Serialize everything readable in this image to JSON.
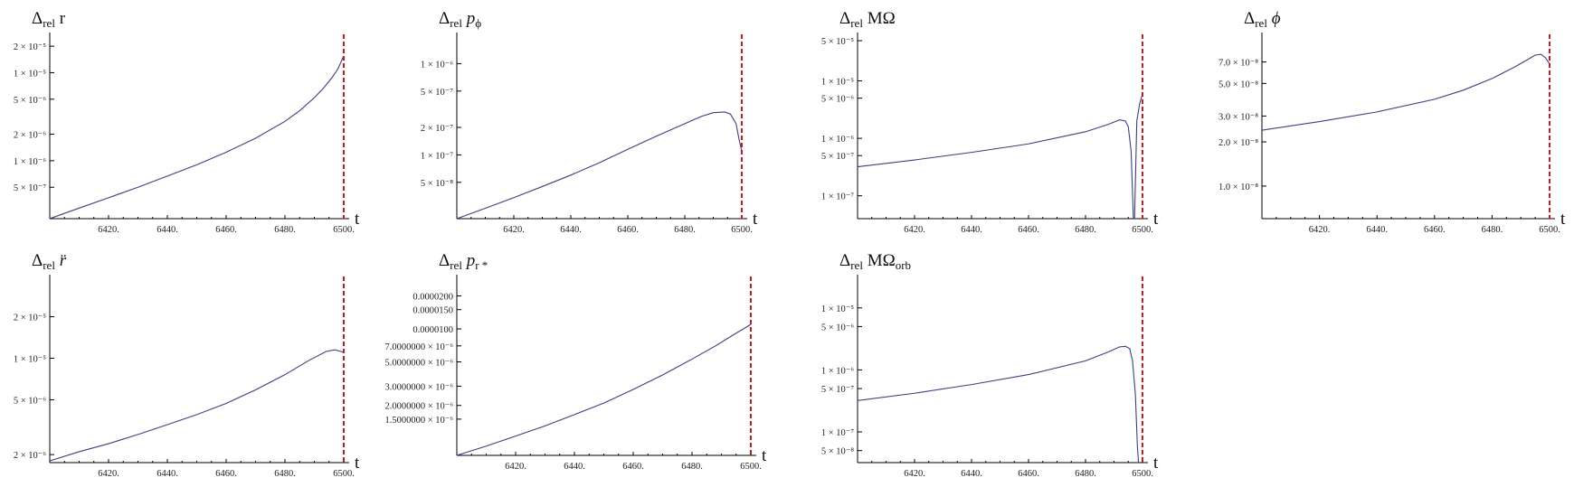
{
  "chart_data": [
    {
      "type": "line",
      "title": "Δrel r",
      "xlabel": "t",
      "log_y": true,
      "xlim": [
        6400,
        6500
      ],
      "ylim": [
        2.2e-07,
        2.6e-05
      ],
      "x_ticks": [
        6420,
        6440,
        6460,
        6480,
        6500
      ],
      "x_tick_labels": [
        "6420.",
        "6440.",
        "6460.",
        "6480.",
        "6500."
      ],
      "y_ticks": [
        5e-07,
        1e-06,
        2e-06,
        5e-06,
        1e-05,
        2e-05
      ],
      "y_tick_labels": [
        "5 × 10⁻⁷",
        "1 × 10⁻⁶",
        "2 × 10⁻⁶",
        "5 × 10⁻⁶",
        "1 × 10⁻⁵",
        "2 × 10⁻⁵"
      ],
      "vline_x": 6500,
      "series": [
        {
          "x": [
            6400,
            6410,
            6420,
            6430,
            6440,
            6450,
            6460,
            6470,
            6480,
            6485,
            6490,
            6493,
            6496,
            6498,
            6500
          ],
          "values": [
            2.2e-07,
            2.9e-07,
            3.8e-07,
            5e-07,
            6.7e-07,
            9e-07,
            1.25e-06,
            1.8e-06,
            2.8e-06,
            3.7e-06,
            5.2e-06,
            6.6e-06,
            8.8e-06,
            1.1e-05,
            1.55e-05
          ]
        }
      ]
    },
    {
      "type": "line",
      "title": "Δrel pϕ",
      "xlabel": "t",
      "log_y": true,
      "xlim": [
        6400,
        6500
      ],
      "ylim": [
        2e-08,
        2e-06
      ],
      "x_ticks": [
        6420,
        6440,
        6460,
        6480,
        6500
      ],
      "x_tick_labels": [
        "6420.",
        "6440.",
        "6460.",
        "6480.",
        "6500."
      ],
      "y_ticks": [
        5e-08,
        1e-07,
        2e-07,
        5e-07,
        1e-06
      ],
      "y_tick_labels": [
        "5 × 10⁻⁸",
        "1 × 10⁻⁷",
        "2 × 10⁻⁷",
        "5 × 10⁻⁷",
        "1 × 10⁻⁶"
      ],
      "vline_x": 6500,
      "series": [
        {
          "x": [
            6400,
            6410,
            6420,
            6430,
            6440,
            6450,
            6460,
            6470,
            6480,
            6486,
            6490,
            6494,
            6496,
            6498,
            6499,
            6500
          ],
          "values": [
            2e-08,
            2.6e-08,
            3.4e-08,
            4.5e-08,
            6e-08,
            8.2e-08,
            1.15e-07,
            1.6e-07,
            2.2e-07,
            2.65e-07,
            2.9e-07,
            2.95e-07,
            2.8e-07,
            2.2e-07,
            1.5e-07,
            1.1e-07
          ]
        }
      ]
    },
    {
      "type": "line",
      "title": "Δrel MΩ",
      "xlabel": "t",
      "log_y": true,
      "xlim": [
        6400,
        6500
      ],
      "ylim": [
        4e-08,
        6e-05
      ],
      "x_ticks": [
        6420,
        6440,
        6460,
        6480,
        6500
      ],
      "x_tick_labels": [
        "6420.",
        "6440.",
        "6460.",
        "6480.",
        "6500."
      ],
      "y_ticks": [
        1e-07,
        5e-07,
        1e-06,
        5e-06,
        1e-05,
        5e-05
      ],
      "y_tick_labels": [
        "1 × 10⁻⁷",
        "5 × 10⁻⁷",
        "1 × 10⁻⁶",
        "5 × 10⁻⁶",
        "1 × 10⁻⁵",
        "5 × 10⁻⁵"
      ],
      "vline_x": 6500,
      "series": [
        {
          "x": [
            6400,
            6420,
            6440,
            6460,
            6480,
            6488,
            6492,
            6494,
            6495,
            6496,
            6496.8,
            6497.2,
            6498,
            6499,
            6500
          ],
          "values": [
            3.2e-07,
            4.2e-07,
            5.7e-07,
            8e-07,
            1.3e-06,
            1.75e-06,
            2.1e-06,
            2e-06,
            1.6e-06,
            6e-07,
            4e-08,
            4e-08,
            2e-06,
            4e-06,
            6e-06
          ]
        }
      ]
    },
    {
      "type": "line",
      "title": "Δrel ϕ",
      "xlabel": "t",
      "log_y": true,
      "xlim": [
        6400,
        6500
      ],
      "ylim": [
        6e-09,
        1.05e-07
      ],
      "x_ticks": [
        6420,
        6440,
        6460,
        6480,
        6500
      ],
      "x_tick_labels": [
        "6420.",
        "6440.",
        "6460.",
        "6480.",
        "6500."
      ],
      "y_ticks": [
        1e-08,
        2e-08,
        3e-08,
        5e-08,
        7e-08
      ],
      "y_tick_labels": [
        "1.0 × 10⁻⁸",
        "2.0 × 10⁻⁸",
        "3.0 × 10⁻⁸",
        "5.0 × 10⁻⁸",
        "7.0 × 10⁻⁸"
      ],
      "vline_x": 6500,
      "series": [
        {
          "x": [
            6400,
            6420,
            6440,
            6460,
            6470,
            6480,
            6488,
            6492,
            6495,
            6497,
            6498.5,
            6500
          ],
          "values": [
            2.4e-08,
            2.75e-08,
            3.2e-08,
            3.9e-08,
            4.5e-08,
            5.4e-08,
            6.5e-08,
            7.2e-08,
            7.8e-08,
            7.9e-08,
            7.5e-08,
            6.8e-08
          ]
        }
      ]
    },
    {
      "type": "line",
      "title": "Δrel r̈",
      "xlabel": "t",
      "log_y": true,
      "xlim": [
        6400,
        6500
      ],
      "ylim": [
        1.75e-06,
        3.8e-05
      ],
      "x_ticks": [
        6420,
        6440,
        6460,
        6480,
        6500
      ],
      "x_tick_labels": [
        "6420.",
        "6440.",
        "6460.",
        "6480.",
        "6500."
      ],
      "y_ticks": [
        2e-06,
        5e-06,
        1e-05,
        2e-05
      ],
      "y_tick_labels": [
        "2 × 10⁻⁶",
        "5 × 10⁻⁶",
        "1 × 10⁻⁵",
        "2 × 10⁻⁵"
      ],
      "vline_x": 6500,
      "series": [
        {
          "x": [
            6400,
            6410,
            6420,
            6430,
            6440,
            6450,
            6460,
            6470,
            6480,
            6488,
            6494,
            6497,
            6499,
            6500
          ],
          "values": [
            1.8e-06,
            2.1e-06,
            2.4e-06,
            2.8e-06,
            3.3e-06,
            3.9e-06,
            4.7e-06,
            5.9e-06,
            7.6e-06,
            9.6e-06,
            1.12e-05,
            1.15e-05,
            1.12e-05,
            1.1e-05
          ]
        }
      ]
    },
    {
      "type": "line",
      "title": "Δrel pr*",
      "xlabel": "t",
      "log_y": true,
      "xlim": [
        6400,
        6500
      ],
      "ylim": [
        7e-07,
        2.9e-05
      ],
      "x_ticks": [
        6420,
        6440,
        6460,
        6480,
        6500
      ],
      "x_tick_labels": [
        "6420.",
        "6440.",
        "6460.",
        "6480.",
        "6500."
      ],
      "y_ticks": [
        1.5e-06,
        2e-06,
        3e-06,
        5e-06,
        7e-06,
        1e-05,
        1.5e-05,
        2e-05
      ],
      "y_tick_labels": [
        "1.5000000 × 10⁻⁶",
        "2.0000000 × 10⁻⁶",
        "3.0000000 × 10⁻⁶",
        "5.0000000 × 10⁻⁶",
        "7.0000000 × 10⁻⁶",
        "0.0000100",
        "0.0000150",
        "0.0000200"
      ],
      "vline_x": 6500,
      "series": [
        {
          "x": [
            6400,
            6410,
            6420,
            6430,
            6440,
            6450,
            6460,
            6470,
            6480,
            6488,
            6494,
            6498,
            6500
          ],
          "values": [
            7e-07,
            8.5e-07,
            1.05e-06,
            1.3e-06,
            1.65e-06,
            2.1e-06,
            2.8e-06,
            3.8e-06,
            5.3e-06,
            7e-06,
            8.8e-06,
            1.02e-05,
            1.1e-05
          ]
        }
      ]
    },
    {
      "type": "line",
      "title": "Δrel MΩorb",
      "xlabel": "t",
      "log_y": true,
      "xlim": [
        6400,
        6500
      ],
      "ylim": [
        3.2e-08,
        3e-05
      ],
      "x_ticks": [
        6420,
        6440,
        6460,
        6480,
        6500
      ],
      "x_tick_labels": [
        "6420.",
        "6440.",
        "6460.",
        "6480.",
        "6500."
      ],
      "y_ticks": [
        5e-08,
        1e-07,
        5e-07,
        1e-06,
        5e-06,
        1e-05
      ],
      "y_tick_labels": [
        "5 × 10⁻⁸",
        "1 × 10⁻⁷",
        "5 × 10⁻⁷",
        "1 × 10⁻⁶",
        "5 × 10⁻⁶",
        "1 × 10⁻⁵"
      ],
      "vline_x": 6500,
      "series": [
        {
          "x": [
            6400,
            6420,
            6440,
            6460,
            6480,
            6488,
            6492,
            6494,
            6495.5,
            6496.5,
            6497.5,
            6498.2,
            6498.6
          ],
          "values": [
            3.2e-07,
            4.2e-07,
            5.8e-07,
            8.4e-07,
            1.4e-06,
            1.95e-06,
            2.35e-06,
            2.4e-06,
            2.2e-06,
            1.4e-06,
            4e-07,
            6e-08,
            3.2e-08
          ]
        }
      ]
    }
  ]
}
